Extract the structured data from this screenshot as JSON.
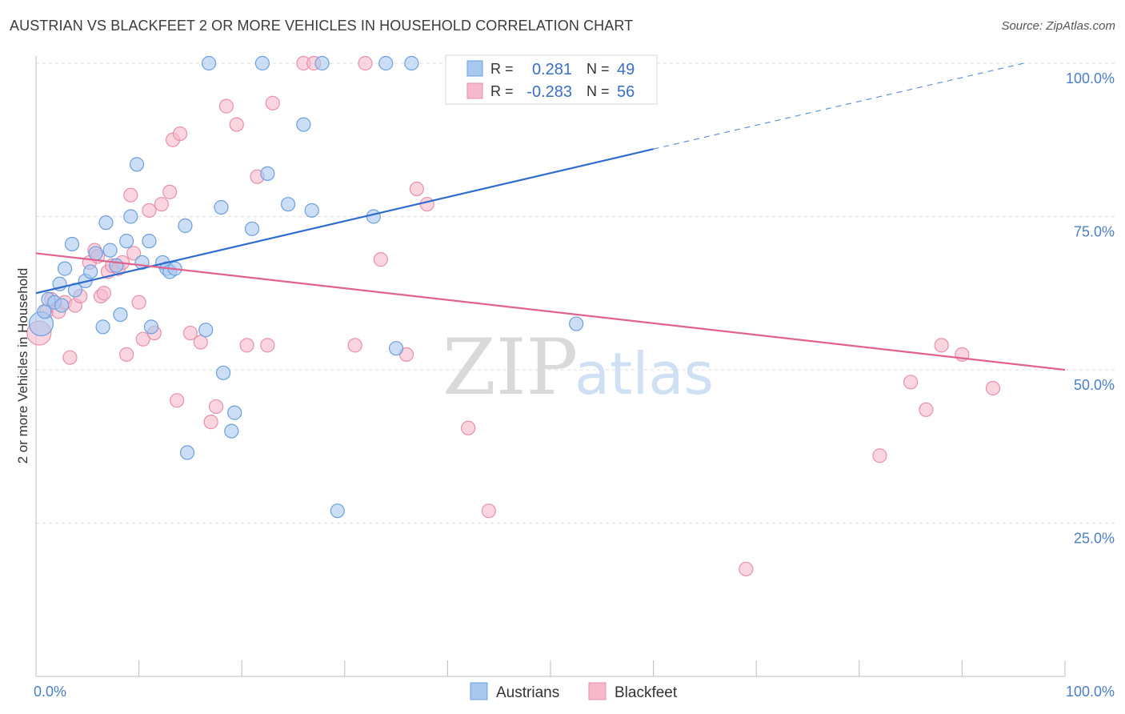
{
  "header": {
    "title": "AUSTRIAN VS BLACKFEET 2 OR MORE VEHICLES IN HOUSEHOLD CORRELATION CHART",
    "source": "Source: ZipAtlas.com"
  },
  "watermark": {
    "zip": "ZIP",
    "atlas": "atlas"
  },
  "colors": {
    "austrians_fill": "#a9c8ef",
    "austrians_stroke": "#6d9fdc",
    "austrians_line": "#2f6ccc",
    "blackfeet_fill": "#f6b9cb",
    "blackfeet_stroke": "#e690ab",
    "blackfeet_line": "#e0628f",
    "tick_text": "#4a7ec9",
    "grid": "#dedede"
  },
  "legend_box": {
    "rows": [
      {
        "r_label": "R =",
        "r_value": "0.281",
        "n_label": "N =",
        "n_value": "49"
      },
      {
        "r_label": "R =",
        "r_value": "-0.283",
        "n_label": "N =",
        "n_value": "56"
      }
    ]
  },
  "chart_data": {
    "type": "scatter",
    "ylabel": "2 or more Vehicles in Household",
    "xlim": [
      0,
      100
    ],
    "ylim": [
      0,
      105
    ],
    "x_tick_labels": [
      "0.0%",
      "100.0%"
    ],
    "y_ticks": [
      25,
      50,
      75,
      100
    ],
    "y_tick_labels": [
      "25.0%",
      "50.0%",
      "75.0%",
      "100.0%"
    ],
    "grid": "horizontal dashed",
    "legend": "bottom-center",
    "series": [
      {
        "name": "Austrians",
        "trend": {
          "x0": 0,
          "y0": 62.5,
          "x1": 60,
          "y1": 86,
          "dashed_to_x": 96,
          "dashed_to_y": 100
        },
        "points": [
          [
            0.5,
            57.5
          ],
          [
            0.8,
            59.5
          ],
          [
            1.2,
            61.5
          ],
          [
            1.8,
            61.0
          ],
          [
            2.5,
            60.5
          ],
          [
            2.3,
            64.0
          ],
          [
            2.8,
            66.5
          ],
          [
            3.8,
            63.0
          ],
          [
            3.5,
            70.5
          ],
          [
            4.8,
            64.5
          ],
          [
            5.3,
            66.0
          ],
          [
            5.8,
            69.0
          ],
          [
            6.5,
            57.0
          ],
          [
            6.8,
            74.0
          ],
          [
            7.2,
            69.5
          ],
          [
            7.8,
            67.0
          ],
          [
            8.2,
            59.0
          ],
          [
            8.8,
            71.0
          ],
          [
            9.2,
            75.0
          ],
          [
            9.8,
            83.5
          ],
          [
            10.3,
            67.5
          ],
          [
            11.0,
            71.0
          ],
          [
            11.2,
            57.0
          ],
          [
            12.3,
            67.5
          ],
          [
            12.7,
            66.5
          ],
          [
            13.0,
            66.0
          ],
          [
            13.5,
            66.5
          ],
          [
            14.5,
            73.5
          ],
          [
            14.7,
            36.5
          ],
          [
            16.5,
            56.5
          ],
          [
            16.8,
            100.0
          ],
          [
            18.0,
            76.5
          ],
          [
            18.2,
            49.5
          ],
          [
            19.0,
            40.0
          ],
          [
            19.3,
            43.0
          ],
          [
            21.0,
            73.0
          ],
          [
            22.0,
            100.0
          ],
          [
            22.5,
            82.0
          ],
          [
            24.5,
            77.0
          ],
          [
            26.0,
            90.0
          ],
          [
            26.8,
            76.0
          ],
          [
            27.8,
            100.0
          ],
          [
            29.3,
            27.0
          ],
          [
            32.8,
            75.0
          ],
          [
            34.0,
            100.0
          ],
          [
            35.0,
            53.5
          ],
          [
            36.5,
            100.0
          ],
          [
            41.0,
            100.0
          ],
          [
            52.5,
            57.5
          ]
        ]
      },
      {
        "name": "Blackfeet",
        "trend": {
          "x0": 0,
          "y0": 69,
          "x1": 100,
          "y1": 50
        },
        "points": [
          [
            0.3,
            56.0
          ],
          [
            1.0,
            59.5
          ],
          [
            1.5,
            61.5
          ],
          [
            2.2,
            59.5
          ],
          [
            2.8,
            61.0
          ],
          [
            3.3,
            52.0
          ],
          [
            3.8,
            60.5
          ],
          [
            4.3,
            62.0
          ],
          [
            5.2,
            67.5
          ],
          [
            5.7,
            69.5
          ],
          [
            6.0,
            68.5
          ],
          [
            6.3,
            62.0
          ],
          [
            6.6,
            62.5
          ],
          [
            7.0,
            66.0
          ],
          [
            7.4,
            67.0
          ],
          [
            8.0,
            66.5
          ],
          [
            8.4,
            67.5
          ],
          [
            8.8,
            52.5
          ],
          [
            9.2,
            78.5
          ],
          [
            9.5,
            69.0
          ],
          [
            10.0,
            61.0
          ],
          [
            10.4,
            55.0
          ],
          [
            11.0,
            76.0
          ],
          [
            11.5,
            56.0
          ],
          [
            12.2,
            77.0
          ],
          [
            13.0,
            79.0
          ],
          [
            13.3,
            87.5
          ],
          [
            13.7,
            45.0
          ],
          [
            14.0,
            88.5
          ],
          [
            15.0,
            56.0
          ],
          [
            16.0,
            54.5
          ],
          [
            17.0,
            41.5
          ],
          [
            17.5,
            44.0
          ],
          [
            18.5,
            93.0
          ],
          [
            19.5,
            90.0
          ],
          [
            20.5,
            54.0
          ],
          [
            21.5,
            81.5
          ],
          [
            22.5,
            54.0
          ],
          [
            23.0,
            93.5
          ],
          [
            26.0,
            100.0
          ],
          [
            27.0,
            100.0
          ],
          [
            31.0,
            54.0
          ],
          [
            32.0,
            100.0
          ],
          [
            33.5,
            68.0
          ],
          [
            36.0,
            52.5
          ],
          [
            37.0,
            79.5
          ],
          [
            38.0,
            77.0
          ],
          [
            42.0,
            40.5
          ],
          [
            44.0,
            27.0
          ],
          [
            69.0,
            17.5
          ],
          [
            82.0,
            36.0
          ],
          [
            85.0,
            48.0
          ],
          [
            86.5,
            43.5
          ],
          [
            88.0,
            54.0
          ],
          [
            90.0,
            52.5
          ],
          [
            93.0,
            47.0
          ]
        ]
      }
    ]
  }
}
